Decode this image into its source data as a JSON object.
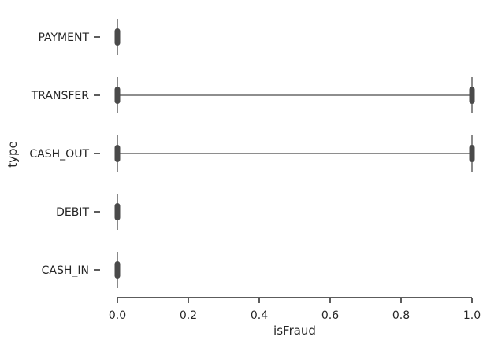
{
  "chart_data": {
    "type": "violin",
    "orientation": "horizontal",
    "xlabel": "isFraud",
    "ylabel": "type",
    "xlim": [
      0.0,
      1.0
    ],
    "xticks": [
      "0.0",
      "0.2",
      "0.4",
      "0.6",
      "0.8",
      "1.0"
    ],
    "categories": [
      "PAYMENT",
      "TRANSFER",
      "CASH_OUT",
      "DEBIT",
      "CASH_IN"
    ],
    "series": [
      {
        "category": "PAYMENT",
        "values_present": [
          0
        ]
      },
      {
        "category": "TRANSFER",
        "values_present": [
          0,
          1
        ]
      },
      {
        "category": "CASH_OUT",
        "values_present": [
          0,
          1
        ]
      },
      {
        "category": "DEBIT",
        "values_present": [
          0
        ]
      },
      {
        "category": "CASH_IN",
        "values_present": [
          0
        ]
      }
    ],
    "grid": false,
    "colors": {
      "violin": "#4a4a4a",
      "axis": "#262626"
    }
  }
}
